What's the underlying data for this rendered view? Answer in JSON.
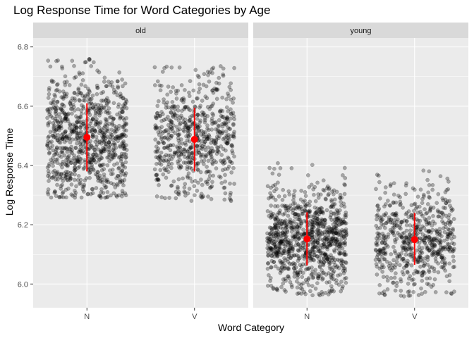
{
  "chart_data": {
    "type": "scatter",
    "title": "Log Response Time for Word Categories by Age",
    "xlabel": "Word Category",
    "ylabel": "Log Response Time",
    "ylim": [
      5.92,
      6.83
    ],
    "yticks": [
      "6.0",
      "6.2",
      "6.4",
      "6.6",
      "6.8"
    ],
    "categories": [
      "N",
      "V"
    ],
    "grid": true,
    "colors": {
      "points": "#000000",
      "summary": "#ff0000",
      "panel": "#ebebeb",
      "strip": "#d9d9d9",
      "grid": "#ffffff"
    },
    "panels": [
      {
        "label": "old",
        "groups": [
          {
            "category": "N",
            "n": 900,
            "mean": 6.495,
            "sd": 0.112,
            "lower": 6.38,
            "upper": 6.61,
            "min": 6.29,
            "max": 6.76
          },
          {
            "category": "V",
            "n": 650,
            "mean": 6.488,
            "sd": 0.105,
            "lower": 6.38,
            "upper": 6.595,
            "min": 6.28,
            "max": 6.735
          }
        ]
      },
      {
        "label": "young",
        "groups": [
          {
            "category": "N",
            "n": 950,
            "mean": 6.152,
            "sd": 0.092,
            "lower": 6.063,
            "upper": 6.242,
            "min": 5.96,
            "max": 6.41
          },
          {
            "category": "V",
            "n": 620,
            "mean": 6.15,
            "sd": 0.09,
            "lower": 6.065,
            "upper": 6.24,
            "min": 5.955,
            "max": 6.385
          }
        ]
      }
    ]
  }
}
